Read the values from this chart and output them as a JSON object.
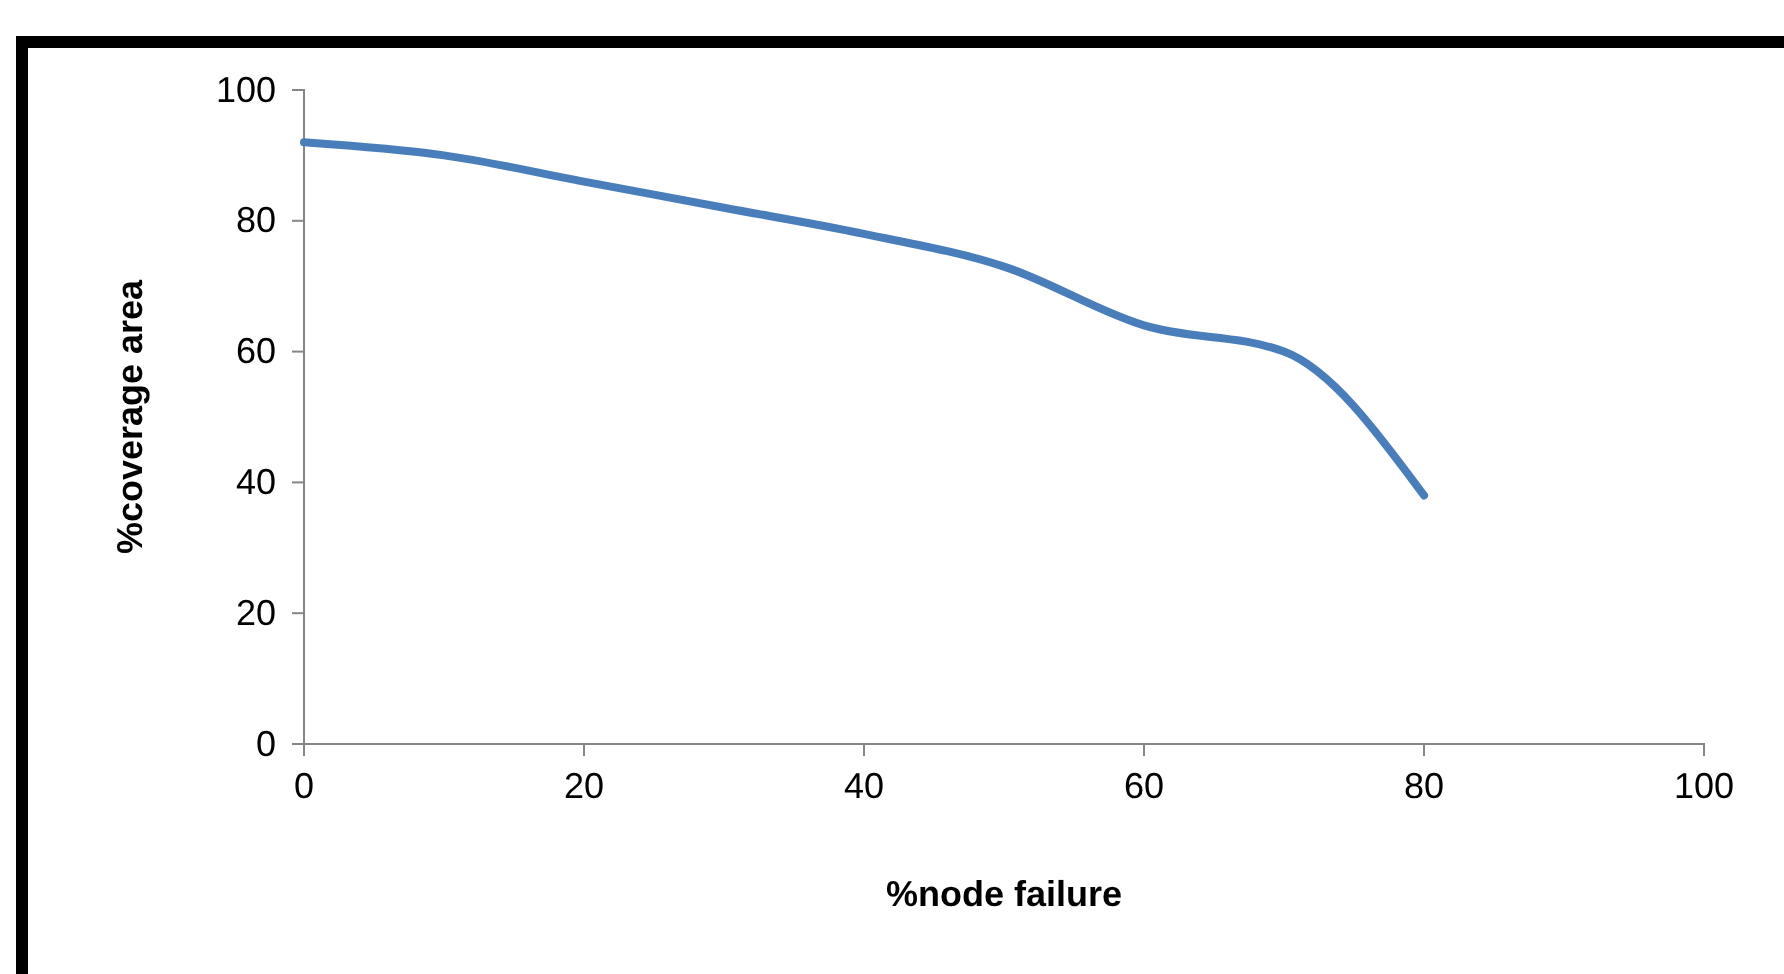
{
  "chart_data": {
    "type": "line",
    "xlabel": "%node failure",
    "ylabel": "%coverage area",
    "x": [
      0,
      10,
      20,
      30,
      40,
      50,
      60,
      70,
      80
    ],
    "series": [
      {
        "color": "#4a7ebb",
        "values": [
          92,
          90,
          86,
          82,
          78,
          73,
          64,
          60,
          38
        ]
      }
    ],
    "xlim": [
      0,
      100
    ],
    "xticks": [
      0,
      20,
      40,
      60,
      80,
      100
    ],
    "ylim": [
      0,
      100
    ],
    "yticks": [
      0,
      20,
      40,
      60,
      80,
      100
    ],
    "grid": false,
    "marker": "none",
    "line_style": "solid"
  }
}
